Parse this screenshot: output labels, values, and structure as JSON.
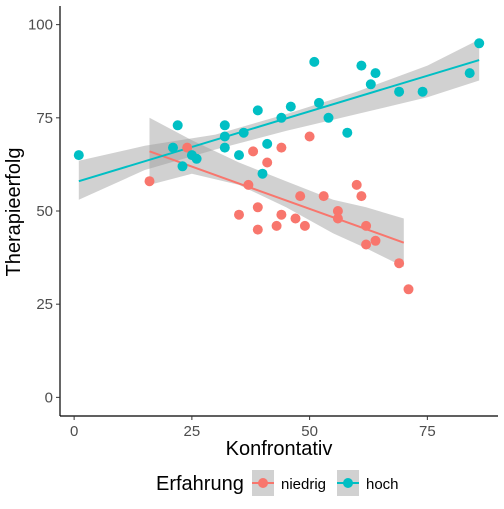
{
  "chart_data": {
    "type": "scatter",
    "xlabel": "Konfrontativ",
    "ylabel": "Therapieerfolg",
    "xlim": [
      -3,
      90
    ],
    "ylim": [
      -5,
      105
    ],
    "xticks": [
      0,
      25,
      50,
      75
    ],
    "yticks": [
      0,
      25,
      50,
      75,
      100
    ],
    "grid": false,
    "legend": {
      "title": "Erfahrung",
      "position": "bottom"
    },
    "series": [
      {
        "name": "niedrig",
        "color": "#F8766D",
        "points": [
          [
            16,
            58
          ],
          [
            24,
            67
          ],
          [
            35,
            49
          ],
          [
            37,
            57
          ],
          [
            38,
            66
          ],
          [
            39,
            51
          ],
          [
            39,
            45
          ],
          [
            41,
            63
          ],
          [
            43,
            46
          ],
          [
            44,
            67
          ],
          [
            44,
            49
          ],
          [
            47,
            48
          ],
          [
            48,
            54
          ],
          [
            49,
            46
          ],
          [
            50,
            70
          ],
          [
            53,
            54
          ],
          [
            56,
            50
          ],
          [
            56,
            48
          ],
          [
            60,
            57
          ],
          [
            61,
            54
          ],
          [
            62,
            46
          ],
          [
            62,
            41
          ],
          [
            64,
            42
          ],
          [
            69,
            36
          ],
          [
            71,
            29
          ]
        ],
        "fit": {
          "x": [
            16,
            70
          ],
          "y": [
            66,
            41.5
          ]
        },
        "band": {
          "x": [
            16,
            25,
            35,
            45,
            55,
            62,
            70
          ],
          "upper": [
            75,
            69,
            63,
            58,
            53,
            51,
            48
          ],
          "lower": [
            57,
            60,
            57,
            51,
            44,
            40,
            35
          ]
        }
      },
      {
        "name": "hoch",
        "color": "#00BFC4",
        "points": [
          [
            1,
            65
          ],
          [
            21,
            67
          ],
          [
            22,
            73
          ],
          [
            23,
            62
          ],
          [
            25,
            65
          ],
          [
            26,
            64
          ],
          [
            32,
            70
          ],
          [
            32,
            67
          ],
          [
            32,
            73
          ],
          [
            35,
            65
          ],
          [
            36,
            71
          ],
          [
            39,
            77
          ],
          [
            40,
            60
          ],
          [
            41,
            68
          ],
          [
            44,
            75
          ],
          [
            46,
            78
          ],
          [
            51,
            90
          ],
          [
            52,
            79
          ],
          [
            54,
            75
          ],
          [
            58,
            71
          ],
          [
            61,
            89
          ],
          [
            63,
            84
          ],
          [
            64,
            87
          ],
          [
            69,
            82
          ],
          [
            74,
            82
          ],
          [
            84,
            87
          ],
          [
            86,
            95
          ]
        ],
        "fit": {
          "x": [
            1,
            86
          ],
          "y": [
            58,
            90.5
          ]
        },
        "band": {
          "x": [
            1,
            15,
            30,
            45,
            60,
            75,
            86
          ],
          "upper": [
            63.5,
            67.5,
            70.5,
            76,
            82,
            89,
            96
          ],
          "lower": [
            53,
            61,
            66.5,
            71.5,
            76,
            80.5,
            85
          ]
        }
      }
    ]
  }
}
